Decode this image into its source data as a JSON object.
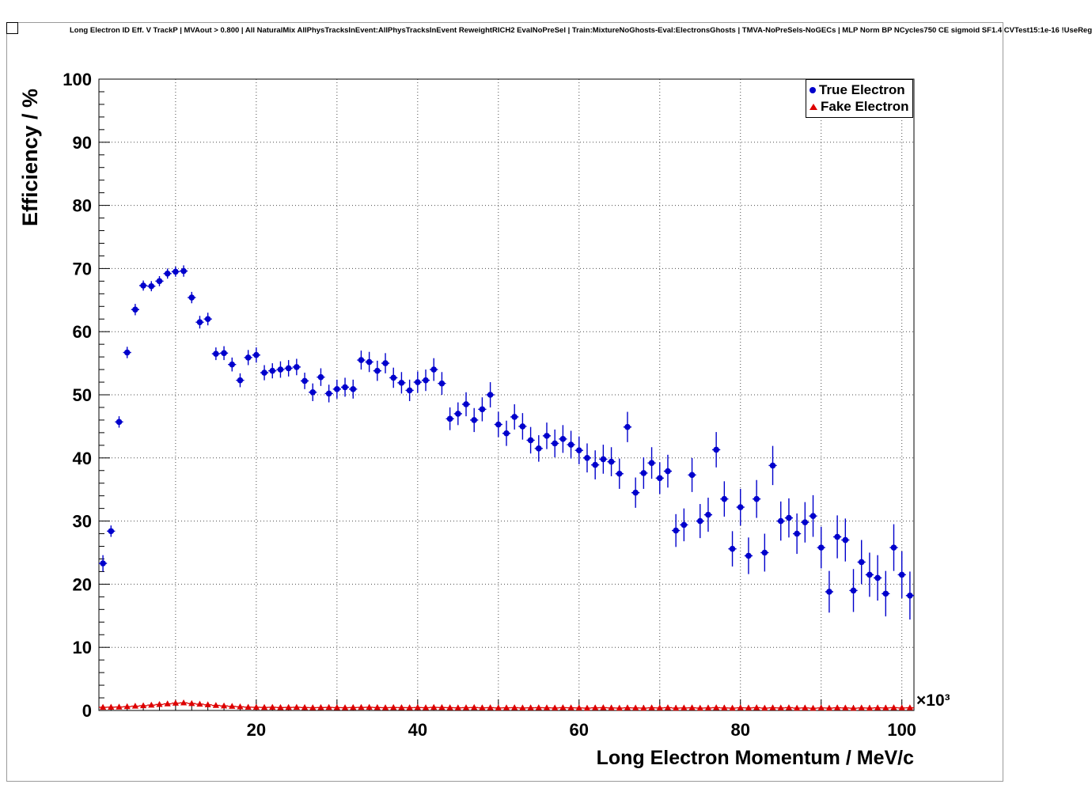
{
  "canvas": {
    "title": "Long Electron ID Eff. V TrackP | MVAout > 0.800 | All NaturalMix AllPhysTracksInEvent:AllPhysTracksInEvent ReweightRICH2 EvalNoPreSel | Train:MixtureNoGhosts-Eval:ElectronsGhosts | TMVA-NoPreSels-NoGECs | MLP Norm BP NCycles750 CE sigmoid SF1.4 CVTest15:1e-16 !UseReg"
  },
  "axes": {
    "y_title": "Efficiency / %",
    "x_title": "Long Electron Momentum / MeV/c",
    "x_exponent": "×10³",
    "y_ticks": [
      0,
      10,
      20,
      30,
      40,
      50,
      60,
      70,
      80,
      90,
      100
    ],
    "x_ticks": [
      20,
      40,
      60,
      80,
      100
    ]
  },
  "legend": {
    "entries": [
      {
        "label": "True Electron",
        "marker": "circle",
        "color": "#0000cc"
      },
      {
        "label": "Fake Electron",
        "marker": "triangle",
        "color": "#dd0000"
      }
    ]
  },
  "chart_data": {
    "type": "scatter",
    "title": "Long Electron ID Eff. V TrackP | MVAout > 0.800",
    "xlabel": "Long Electron Momentum / MeV/c",
    "ylabel": "Efficiency / %",
    "x_units": "10^3 MeV/c",
    "xlim": [
      0.5,
      101.5
    ],
    "ylim": [
      0,
      100
    ],
    "grid": true,
    "legend_position": "top-right",
    "x": [
      1,
      2,
      3,
      4,
      5,
      6,
      7,
      8,
      9,
      10,
      11,
      12,
      13,
      14,
      15,
      16,
      17,
      18,
      19,
      20,
      21,
      22,
      23,
      24,
      25,
      26,
      27,
      28,
      29,
      30,
      31,
      32,
      33,
      34,
      35,
      36,
      37,
      38,
      39,
      40,
      41,
      42,
      43,
      44,
      45,
      46,
      47,
      48,
      49,
      50,
      51,
      52,
      53,
      54,
      55,
      56,
      57,
      58,
      59,
      60,
      61,
      62,
      63,
      64,
      65,
      66,
      67,
      68,
      69,
      70,
      71,
      72,
      73,
      74,
      75,
      76,
      77,
      78,
      79,
      80,
      81,
      82,
      83,
      84,
      85,
      86,
      87,
      88,
      89,
      90,
      91,
      92,
      93,
      94,
      95,
      96,
      97,
      98,
      99,
      100,
      101
    ],
    "series": [
      {
        "name": "True Electron",
        "marker": "circle",
        "color": "#0000cc",
        "y": [
          23.3,
          28.4,
          45.7,
          56.7,
          63.5,
          67.3,
          67.2,
          68.0,
          69.2,
          69.5,
          69.6,
          65.4,
          61.5,
          62.0,
          56.5,
          56.6,
          54.8,
          52.3,
          55.9,
          56.3,
          53.5,
          53.8,
          54.0,
          54.2,
          54.4,
          52.2,
          50.4,
          52.8,
          50.2,
          50.9,
          51.2,
          50.9,
          55.5,
          55.2,
          53.8,
          55.0,
          52.7,
          51.9,
          50.7,
          52.0,
          52.3,
          54.0,
          51.8,
          46.2,
          47.0,
          48.5,
          46.0,
          47.7,
          50.0,
          45.3,
          43.9,
          46.5,
          45.0,
          42.8,
          41.5,
          43.5,
          42.3,
          43.0,
          42.1,
          41.2,
          40.0,
          38.9,
          39.8,
          39.4,
          37.5,
          44.9,
          34.5,
          37.6,
          39.2,
          36.8,
          37.9,
          28.5,
          29.4,
          37.3,
          30.0,
          31.0,
          41.3,
          33.5,
          25.6,
          32.2,
          24.5,
          33.5,
          25.0,
          38.8,
          30.0,
          30.5,
          28.0,
          29.8,
          30.8,
          25.8,
          18.8,
          27.5,
          27.0,
          19.0,
          23.5,
          21.5,
          21.0,
          18.5,
          25.8,
          21.5,
          18.2
        ],
        "yerr": [
          1.3,
          0.9,
          0.9,
          0.9,
          0.9,
          0.8,
          0.8,
          0.8,
          0.8,
          0.8,
          0.9,
          0.9,
          1.0,
          1.0,
          1.0,
          1.1,
          1.1,
          1.1,
          1.2,
          1.2,
          1.2,
          1.2,
          1.3,
          1.3,
          1.3,
          1.3,
          1.4,
          1.4,
          1.4,
          1.5,
          1.5,
          1.5,
          1.5,
          1.6,
          1.6,
          1.6,
          1.6,
          1.7,
          1.7,
          1.7,
          1.7,
          1.8,
          1.8,
          1.8,
          1.8,
          1.9,
          1.9,
          1.9,
          2.0,
          2.0,
          2.0,
          2.0,
          2.1,
          2.1,
          2.1,
          2.1,
          2.2,
          2.2,
          2.2,
          2.2,
          2.3,
          2.3,
          2.3,
          2.3,
          2.4,
          2.4,
          2.4,
          2.5,
          2.5,
          2.5,
          2.6,
          2.6,
          2.6,
          2.7,
          2.7,
          2.7,
          2.8,
          2.8,
          2.8,
          2.9,
          2.9,
          3.0,
          3.0,
          3.1,
          3.1,
          3.1,
          3.2,
          3.2,
          3.3,
          3.3,
          3.3,
          3.4,
          3.4,
          3.4,
          3.5,
          3.5,
          3.6,
          3.6,
          3.7,
          3.7,
          3.8
        ]
      },
      {
        "name": "Fake Electron",
        "marker": "triangle",
        "color": "#dd0000",
        "y": [
          0.5,
          0.52,
          0.55,
          0.6,
          0.68,
          0.75,
          0.85,
          0.95,
          1.05,
          1.15,
          1.2,
          1.1,
          1.0,
          0.9,
          0.8,
          0.72,
          0.65,
          0.58,
          0.52,
          0.5,
          0.48,
          0.5,
          0.46,
          0.48,
          0.5,
          0.46,
          0.44,
          0.46,
          0.48,
          0.45,
          0.44,
          0.46,
          0.48,
          0.5,
          0.46,
          0.44,
          0.46,
          0.45,
          0.44,
          0.46,
          0.44,
          0.48,
          0.46,
          0.44,
          0.42,
          0.44,
          0.46,
          0.42,
          0.44,
          0.4,
          0.42,
          0.44,
          0.4,
          0.42,
          0.44,
          0.42,
          0.4,
          0.44,
          0.42,
          0.4,
          0.38,
          0.42,
          0.44,
          0.4,
          0.38,
          0.42,
          0.4,
          0.38,
          0.42,
          0.4,
          0.44,
          0.38,
          0.4,
          0.42,
          0.38,
          0.4,
          0.44,
          0.4,
          0.38,
          0.42,
          0.4,
          0.44,
          0.38,
          0.42,
          0.4,
          0.44,
          0.38,
          0.4,
          0.36,
          0.4,
          0.38,
          0.42,
          0.4,
          0.36,
          0.4,
          0.38,
          0.42,
          0.4,
          0.44,
          0.4,
          0.42
        ],
        "yerr": 0.1
      }
    ]
  }
}
